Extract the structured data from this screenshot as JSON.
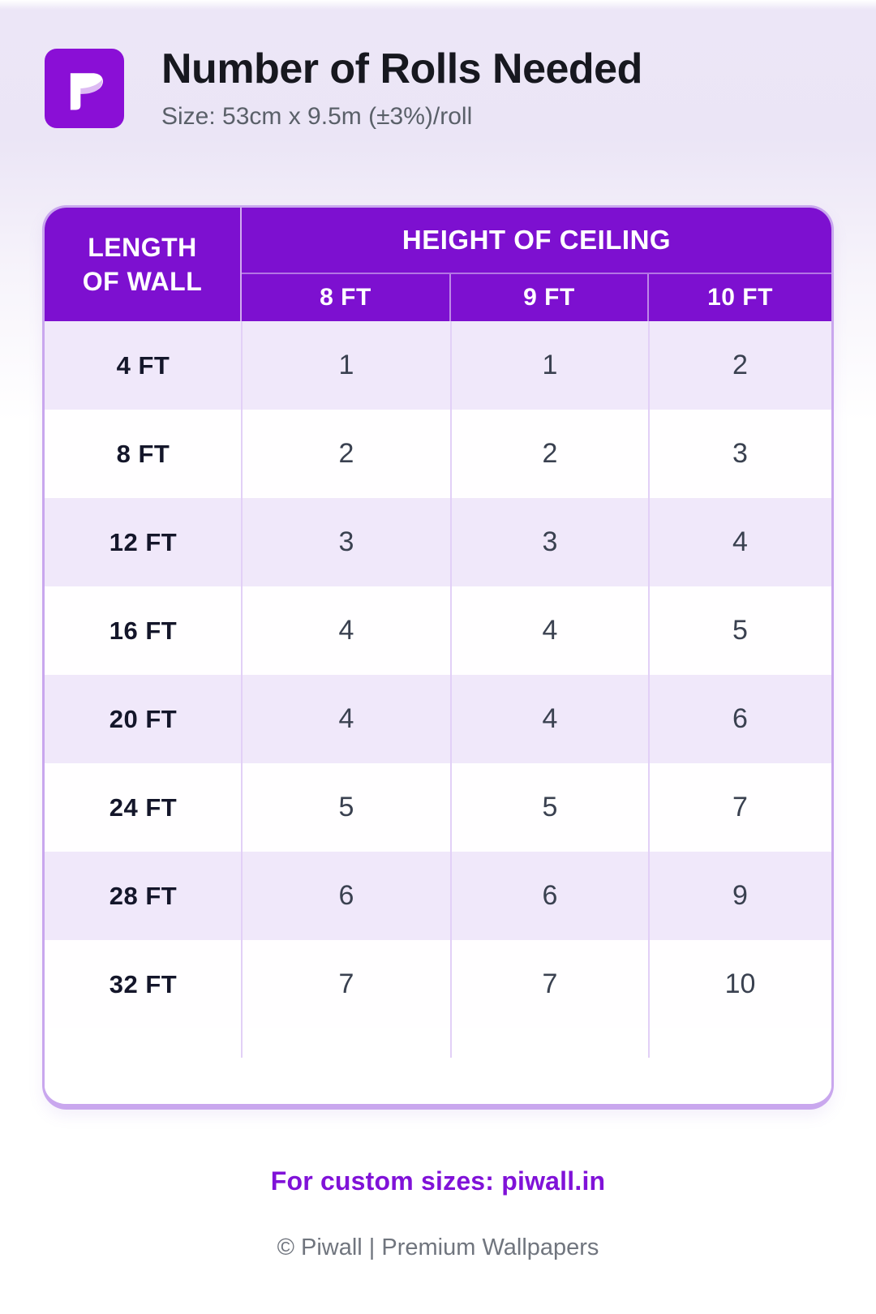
{
  "header": {
    "title": "Number of Rolls Needed",
    "subtitle": "Size: 53cm x 9.5m (±3%)/roll",
    "logo": "piwall-p-monogram"
  },
  "chart_data": {
    "type": "table",
    "title": "Number of Rolls Needed",
    "subtitle": "Size: 53cm x 9.5m (±3%)/roll",
    "row_header": "LENGTH\nOF WALL",
    "column_group_header": "HEIGHT OF CEILING",
    "columns": [
      "8 FT",
      "9 FT",
      "10 FT"
    ],
    "rows": [
      "4 FT",
      "8 FT",
      "12 FT",
      "16 FT",
      "20 FT",
      "24 FT",
      "28 FT",
      "32 FT"
    ],
    "values": [
      [
        1,
        1,
        2
      ],
      [
        2,
        2,
        3
      ],
      [
        3,
        3,
        4
      ],
      [
        4,
        4,
        5
      ],
      [
        4,
        4,
        6
      ],
      [
        5,
        5,
        7
      ],
      [
        6,
        6,
        9
      ],
      [
        7,
        7,
        10
      ]
    ]
  },
  "footer": {
    "custom_sizes_line": "For custom sizes: piwall.in",
    "copyright": "© Piwall | Premium Wallpapers"
  },
  "colors": {
    "header_purple": "#7d10d0",
    "logo_purple": "#8a0fd6",
    "logo_accent": "#ddbbf3",
    "table_border": "#c9a7ee",
    "row_lavender": "#f0e8fa",
    "link_purple": "#8012d8",
    "page_top_lavender": "#ece6f7"
  }
}
